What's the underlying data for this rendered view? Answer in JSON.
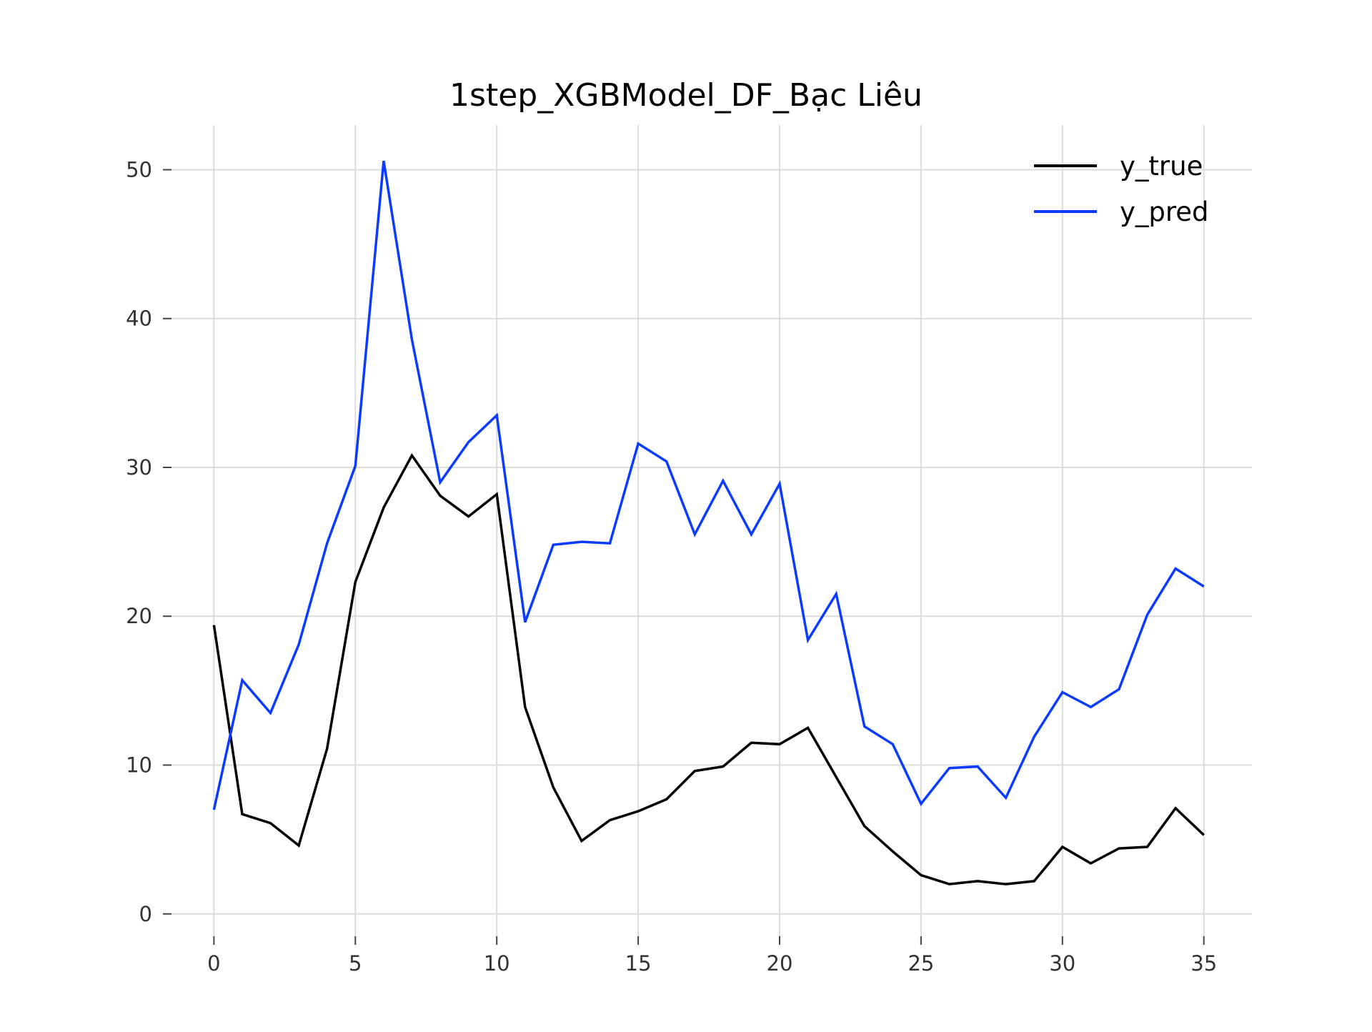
{
  "chart_data": {
    "type": "line",
    "title": "1step_XGBModel_DF_Bạc Liêu",
    "xlabel": "",
    "ylabel": "",
    "xlim": [
      -1.5,
      36.7
    ],
    "ylim": [
      -1.5,
      53
    ],
    "xticks": [
      0,
      5,
      10,
      15,
      20,
      25,
      30,
      35
    ],
    "yticks": [
      0,
      10,
      20,
      30,
      40,
      50
    ],
    "grid": true,
    "legend_position": "top-right",
    "x": [
      0,
      1,
      2,
      3,
      4,
      5,
      6,
      7,
      8,
      9,
      10,
      11,
      12,
      13,
      14,
      15,
      16,
      17,
      18,
      19,
      20,
      21,
      22,
      23,
      24,
      25,
      26,
      27,
      28,
      29,
      30,
      31,
      32,
      33,
      34,
      35
    ],
    "series": [
      {
        "name": "y_true",
        "color": "#000000",
        "values": [
          19.4,
          6.7,
          6.1,
          4.6,
          11.1,
          22.3,
          27.3,
          30.8,
          28.1,
          26.7,
          28.2,
          13.9,
          8.5,
          4.9,
          6.3,
          6.9,
          7.7,
          9.6,
          9.9,
          11.5,
          11.4,
          12.5,
          9.2,
          5.9,
          4.2,
          2.6,
          2.0,
          2.2,
          2.0,
          2.2,
          4.5,
          3.4,
          4.4,
          4.5,
          7.1,
          5.3
        ]
      },
      {
        "name": "y_pred",
        "color": "#0a3bff",
        "values": [
          7.0,
          15.7,
          13.5,
          18.1,
          24.9,
          30.1,
          50.6,
          38.6,
          29.0,
          31.7,
          33.5,
          19.6,
          24.8,
          25.0,
          24.9,
          31.6,
          30.4,
          25.5,
          29.1,
          25.5,
          28.9,
          18.4,
          21.5,
          12.6,
          11.4,
          7.4,
          9.8,
          9.9,
          7.8,
          11.9,
          14.9,
          13.9,
          15.1,
          20.1,
          23.2,
          22.0
        ]
      }
    ]
  }
}
